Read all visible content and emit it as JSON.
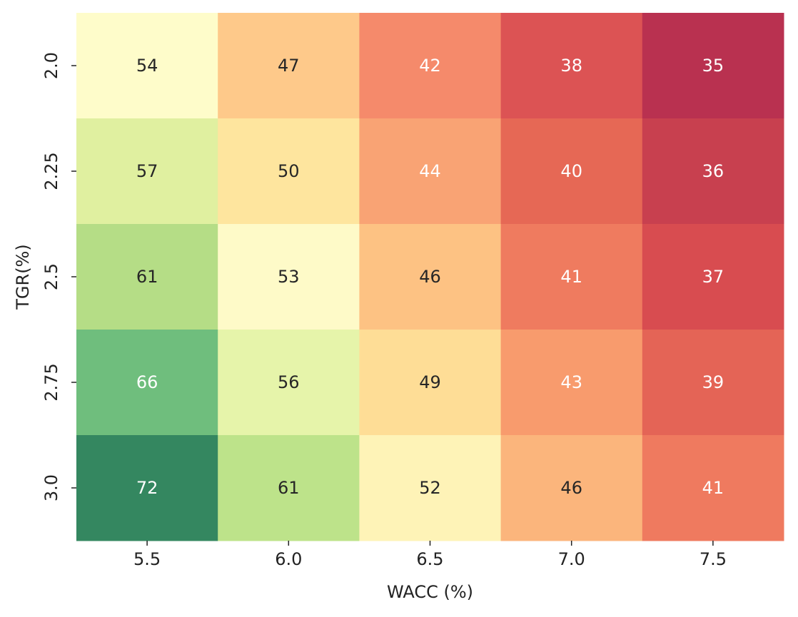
{
  "chart_data": {
    "type": "heatmap",
    "title": "",
    "xlabel": "WACC (%)",
    "ylabel": "TGR(%)",
    "x_categories": [
      "5.5",
      "6.0",
      "6.5",
      "7.0",
      "7.5"
    ],
    "y_categories": [
      "2.0",
      "2.25",
      "2.5",
      "2.75",
      "3.0"
    ],
    "values": [
      [
        54,
        47,
        42,
        38,
        35
      ],
      [
        57,
        50,
        44,
        40,
        36
      ],
      [
        61,
        53,
        46,
        41,
        37
      ],
      [
        66,
        56,
        49,
        43,
        39
      ],
      [
        72,
        61,
        52,
        46,
        41
      ]
    ],
    "colormap": "RdYlGn",
    "colorbar": false,
    "annotated": true,
    "cell_colors": [
      [
        "#fefcca",
        "#fec98a",
        "#f58a6b",
        "#dc5354",
        "#b93150"
      ],
      [
        "#e0f0a0",
        "#fee59e",
        "#f9a374",
        "#e66855",
        "#c8404f"
      ],
      [
        "#b5dd86",
        "#fefac8",
        "#fdc283",
        "#ef7b5f",
        "#d84c50"
      ],
      [
        "#6fbe7d",
        "#e6f4aa",
        "#fedd96",
        "#f89b6d",
        "#e46456"
      ],
      [
        "#348760",
        "#bde38a",
        "#fef3b7",
        "#fbb57c",
        "#ef7a5f"
      ]
    ],
    "text_colors": [
      [
        "#262626",
        "#262626",
        "#ffffff",
        "#ffffff",
        "#ffffff"
      ],
      [
        "#262626",
        "#262626",
        "#ffffff",
        "#ffffff",
        "#ffffff"
      ],
      [
        "#262626",
        "#262626",
        "#262626",
        "#ffffff",
        "#ffffff"
      ],
      [
        "#ffffff",
        "#262626",
        "#262626",
        "#ffffff",
        "#ffffff"
      ],
      [
        "#ffffff",
        "#262626",
        "#262626",
        "#262626",
        "#ffffff"
      ]
    ]
  }
}
